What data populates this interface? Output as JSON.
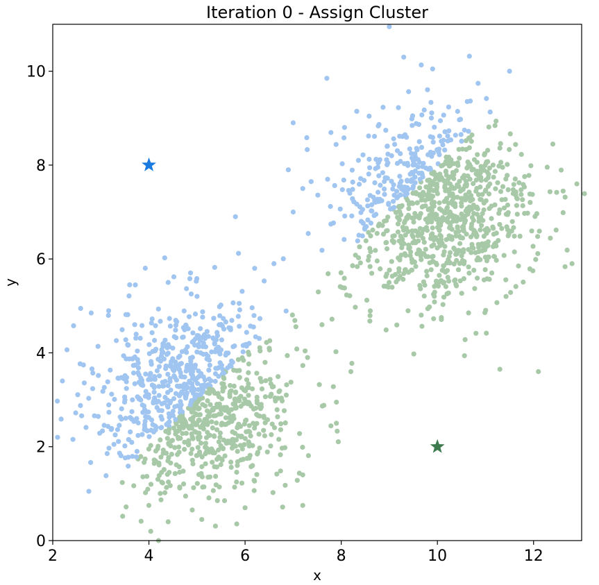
{
  "chart_data": {
    "type": "scatter",
    "title": "Iteration 0 - Assign Cluster",
    "xlabel": "x",
    "ylabel": "y",
    "xlim": [
      2,
      13
    ],
    "ylim": [
      0,
      11
    ],
    "xticks": [
      "2",
      "4",
      "6",
      "8",
      "10",
      "12"
    ],
    "xtick_values": [
      2,
      4,
      6,
      8,
      10,
      12
    ],
    "yticks": [
      "0",
      "2",
      "4",
      "6",
      "8",
      "10"
    ],
    "ytick_values": [
      0,
      2,
      4,
      6,
      8,
      10
    ],
    "grid": false,
    "legend": "none",
    "series": [
      {
        "cluster": 1,
        "color": "#9fc5f0",
        "marker": "circle",
        "approx_count": 1000,
        "center": [
          5.0,
          3.0
        ],
        "std": [
          1.0,
          1.0
        ],
        "points": [
          [
            4.2,
            0.0
          ],
          [
            4.4,
            0.4
          ],
          [
            5.1,
            0.45
          ],
          [
            7.0,
            8.9
          ],
          [
            6.9,
            7.9
          ],
          [
            7.2,
            7.5
          ],
          [
            7.0,
            7.0
          ],
          [
            5.8,
            6.9
          ],
          [
            6.6,
            5.9
          ],
          [
            6.2,
            5.8
          ],
          [
            3.6,
            5.45
          ],
          [
            4.4,
            5.5
          ],
          [
            2.8,
            4.85
          ],
          [
            2.2,
            3.4
          ],
          [
            2.1,
            2.2
          ],
          [
            2.75,
            1.05
          ],
          [
            4.0,
            0.75
          ],
          [
            6.0,
            0.7
          ]
        ]
      },
      {
        "cluster": 2,
        "color": "#a8c9a8",
        "marker": "circle",
        "approx_count": 1000,
        "center": [
          10.0,
          7.0
        ],
        "std": [
          1.0,
          1.0
        ],
        "points": [
          [
            9.0,
            10.95
          ],
          [
            9.3,
            10.3
          ],
          [
            9.9,
            10.05
          ],
          [
            11.5,
            10.0
          ],
          [
            7.7,
            9.85
          ],
          [
            12.9,
            7.6
          ],
          [
            12.8,
            5.9
          ],
          [
            12.1,
            3.6
          ],
          [
            11.3,
            3.65
          ],
          [
            7.2,
            0.75
          ],
          [
            7.2,
            1.4
          ],
          [
            7.9,
            2.5
          ],
          [
            8.2,
            3.6
          ],
          [
            7.9,
            2.95
          ],
          [
            7.3,
            3.9
          ],
          [
            7.6,
            4.6
          ]
        ]
      }
    ],
    "centroids": [
      {
        "x": 4,
        "y": 8,
        "color": "#1a7ae0",
        "marker": "star"
      },
      {
        "x": 10,
        "y": 2,
        "color": "#3d7a4e",
        "marker": "star"
      }
    ]
  }
}
